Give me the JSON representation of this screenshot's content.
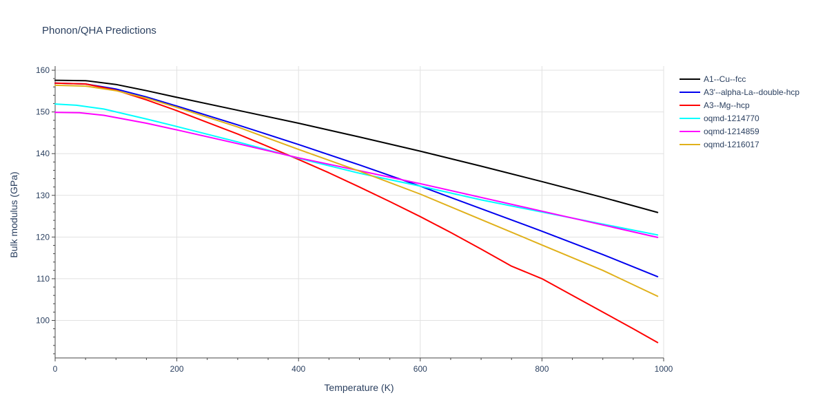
{
  "chart_data": {
    "type": "line",
    "title": "Phonon/QHA Predictions",
    "xlabel": "Temperature (K)",
    "ylabel": "Bulk modulus (GPa)",
    "xlim": [
      0,
      1000
    ],
    "ylim": [
      91,
      161
    ],
    "xticks": [
      0,
      200,
      400,
      600,
      800,
      1000
    ],
    "yticks": [
      100,
      110,
      120,
      130,
      140,
      150,
      160
    ],
    "grid": true,
    "legend_position": "top-right",
    "series": [
      {
        "name": "A1--Cu--fcc",
        "color": "#000000",
        "x": [
          0,
          50,
          100,
          150,
          200,
          300,
          400,
          500,
          600,
          700,
          800,
          900,
          990
        ],
        "y": [
          157.6,
          157.5,
          156.6,
          155.1,
          153.5,
          150.4,
          147.3,
          144.0,
          140.6,
          137.0,
          133.3,
          129.5,
          125.9
        ]
      },
      {
        "name": "A3'--alpha-La--double-hcp",
        "color": "#0000ee",
        "x": [
          0,
          50,
          100,
          150,
          200,
          300,
          400,
          500,
          600,
          700,
          800,
          900,
          990
        ],
        "y": [
          156.9,
          156.7,
          155.5,
          153.6,
          151.4,
          146.9,
          142.2,
          137.3,
          132.2,
          126.8,
          121.4,
          115.8,
          110.5
        ]
      },
      {
        "name": "A3--Mg--hcp",
        "color": "#ff0000",
        "x": [
          0,
          50,
          100,
          150,
          200,
          250,
          300,
          350,
          400,
          450,
          500,
          550,
          600,
          650,
          700,
          750,
          800,
          850,
          900,
          950,
          990
        ],
        "y": [
          156.9,
          156.7,
          155.2,
          152.9,
          150.3,
          147.5,
          144.7,
          141.7,
          138.6,
          135.4,
          132.0,
          128.5,
          124.9,
          121.1,
          117.1,
          113.0,
          110.0,
          106.0,
          102.0,
          98.0,
          94.7
        ]
      },
      {
        "name": "oqmd-1214770",
        "color": "#00ffff",
        "x": [
          0,
          35,
          80,
          150,
          200,
          300,
          400,
          500,
          600,
          700,
          800,
          900,
          990
        ],
        "y": [
          151.9,
          151.6,
          150.7,
          148.3,
          146.5,
          142.8,
          138.9,
          135.3,
          132.2,
          128.9,
          126.0,
          123.1,
          120.5
        ]
      },
      {
        "name": "oqmd-1214859",
        "color": "#ff00ff",
        "x": [
          0,
          40,
          80,
          150,
          200,
          300,
          400,
          500,
          600,
          700,
          800,
          900,
          990
        ],
        "y": [
          149.9,
          149.8,
          149.2,
          147.3,
          145.7,
          142.4,
          139.0,
          135.9,
          132.8,
          129.5,
          126.2,
          122.9,
          119.9
        ]
      },
      {
        "name": "oqmd-1216017",
        "color": "#e0b01a",
        "x": [
          0,
          50,
          100,
          150,
          200,
          300,
          400,
          500,
          600,
          700,
          800,
          900,
          990
        ],
        "y": [
          156.4,
          156.2,
          155.1,
          153.3,
          151.1,
          146.4,
          141.0,
          135.8,
          130.3,
          124.2,
          118.1,
          112.0,
          105.8
        ]
      }
    ]
  }
}
